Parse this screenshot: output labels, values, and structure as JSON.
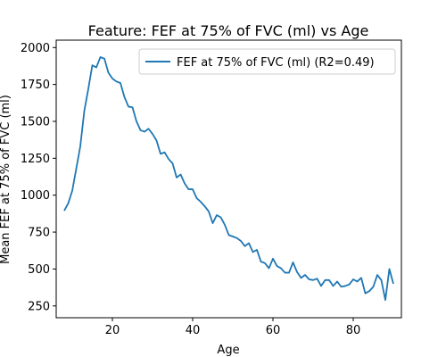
{
  "chart_data": {
    "type": "line",
    "title": "Feature: FEF at 75% of FVC (ml) vs Age",
    "xlabel": "Age",
    "ylabel": "Mean FEF at 75% of FVC (ml)",
    "xlim": [
      6,
      92
    ],
    "ylim": [
      170,
      2050
    ],
    "xticks": [
      20,
      40,
      60,
      80
    ],
    "yticks": [
      250,
      500,
      750,
      1000,
      1250,
      1500,
      1750,
      2000
    ],
    "grid": false,
    "legend_position": "top-right",
    "series": [
      {
        "name": "FEF at 75% of FVC (ml) (R2=0.49)",
        "color": "#1f77b4",
        "x": [
          8,
          9,
          10,
          11,
          12,
          13,
          14,
          15,
          16,
          17,
          18,
          19,
          20,
          21,
          22,
          23,
          24,
          25,
          26,
          27,
          28,
          29,
          30,
          31,
          32,
          33,
          34,
          35,
          36,
          37,
          38,
          39,
          40,
          41,
          42,
          43,
          44,
          45,
          46,
          47,
          48,
          49,
          50,
          51,
          52,
          53,
          54,
          55,
          56,
          57,
          58,
          59,
          60,
          61,
          62,
          63,
          64,
          65,
          66,
          67,
          68,
          69,
          70,
          71,
          72,
          73,
          74,
          75,
          76,
          77,
          78,
          79,
          80,
          81,
          82,
          83,
          84,
          85,
          86,
          87,
          88,
          89,
          90
        ],
        "y": [
          895,
          945,
          1030,
          1180,
          1330,
          1570,
          1720,
          1880,
          1865,
          1935,
          1925,
          1830,
          1790,
          1770,
          1760,
          1665,
          1600,
          1595,
          1500,
          1440,
          1430,
          1450,
          1415,
          1370,
          1280,
          1290,
          1245,
          1215,
          1120,
          1140,
          1080,
          1040,
          1040,
          980,
          955,
          925,
          890,
          810,
          865,
          850,
          800,
          730,
          720,
          710,
          690,
          655,
          675,
          615,
          630,
          550,
          540,
          505,
          570,
          520,
          505,
          475,
          475,
          545,
          480,
          440,
          460,
          430,
          425,
          435,
          385,
          425,
          425,
          385,
          415,
          380,
          385,
          395,
          430,
          415,
          440,
          335,
          350,
          380,
          460,
          425,
          290,
          500,
          400
        ]
      }
    ]
  }
}
